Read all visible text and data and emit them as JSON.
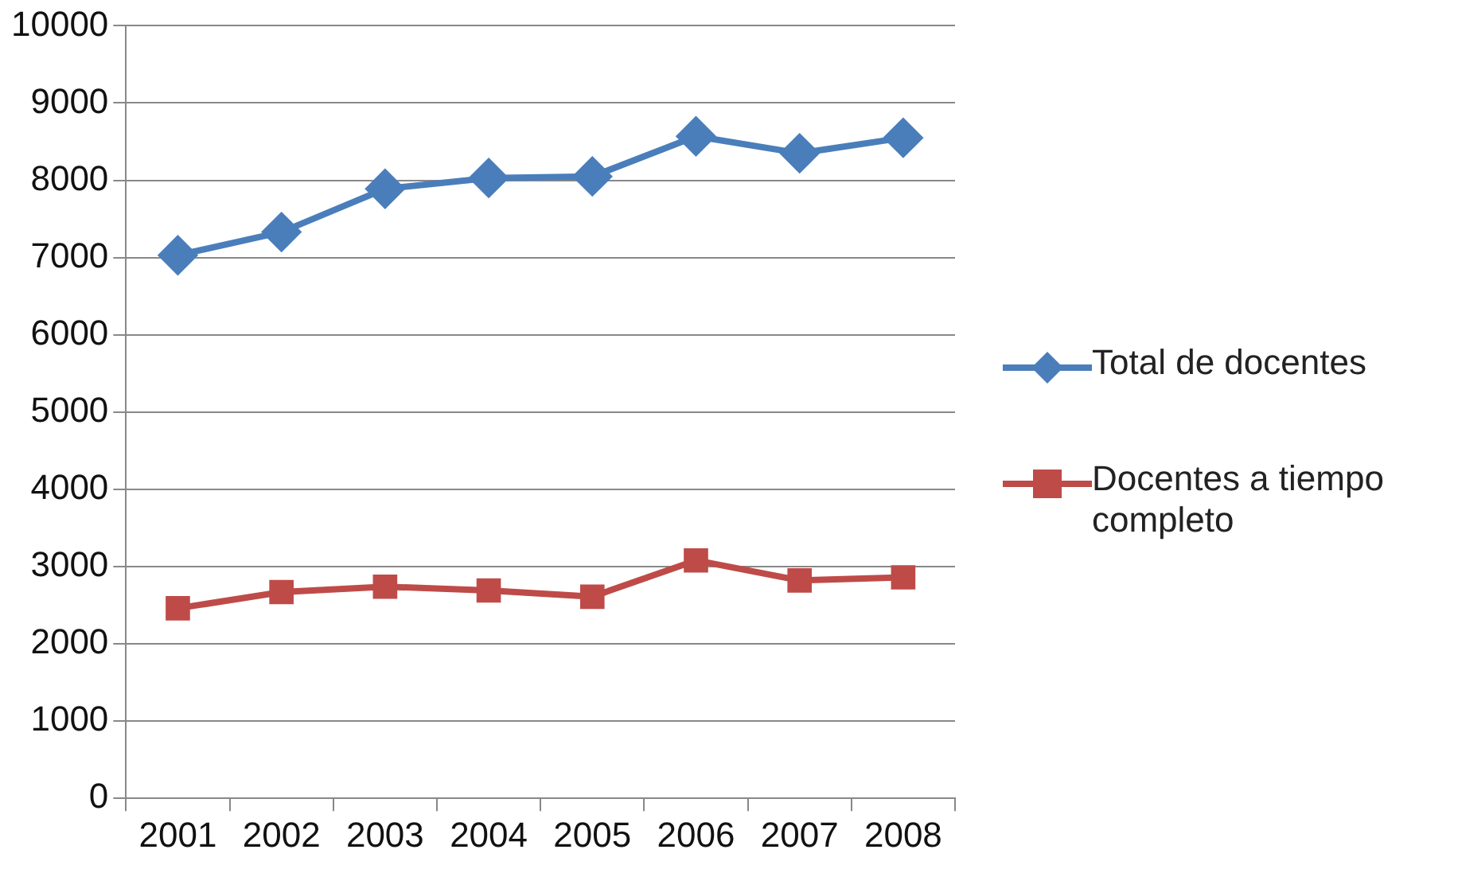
{
  "chart_data": {
    "type": "line",
    "categories": [
      "2001",
      "2002",
      "2003",
      "2004",
      "2005",
      "2006",
      "2007",
      "2008"
    ],
    "series": [
      {
        "name": "Total de docentes",
        "color": "#4a7ebb",
        "marker": "diamond",
        "values": [
          7030,
          7330,
          7890,
          8030,
          8050,
          8570,
          8350,
          8550
        ]
      },
      {
        "name": "Docentes a tiempo completo",
        "color": "#be4b48",
        "marker": "square",
        "values": [
          2460,
          2670,
          2740,
          2690,
          2610,
          3080,
          2820,
          2860
        ]
      }
    ],
    "ylim": [
      0,
      10000
    ],
    "yticks": [
      0,
      1000,
      2000,
      3000,
      4000,
      5000,
      6000,
      7000,
      8000,
      9000,
      10000
    ],
    "grid": "y",
    "legend": "right",
    "line_style": "solid"
  }
}
